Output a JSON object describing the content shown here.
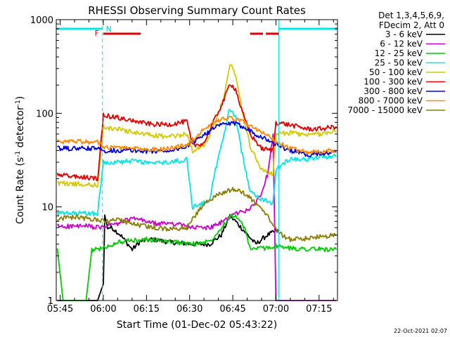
{
  "chart_data": {
    "type": "line",
    "title": "RHESSI Observing Summary Count Rates",
    "xlabel": "Start Time (01-Dec-02 05:43:22)",
    "ylabel_main": "Count Rate (s",
    "ylabel_sup1": "-1",
    "ylabel_mid": " detector",
    "ylabel_sup2": "-1",
    "ylabel_end": ")",
    "y_scale": "log",
    "ylim": [
      1,
      1000
    ],
    "xlim_minutes": [
      -1.37,
      96.4
    ],
    "x_ticks": [
      {
        "label": "05:45",
        "minute": 0
      },
      {
        "label": "06:00",
        "minute": 15
      },
      {
        "label": "06:15",
        "minute": 30
      },
      {
        "label": "06:30",
        "minute": 45
      },
      {
        "label": "06:45",
        "minute": 60
      },
      {
        "label": "07:00",
        "minute": 75
      },
      {
        "label": "07:15",
        "minute": 90
      }
    ],
    "y_ticks": [
      {
        "label": "1",
        "value": 1
      },
      {
        "label": "10",
        "value": 10
      },
      {
        "label": "100",
        "value": 100
      },
      {
        "label": "1000",
        "value": 1000
      }
    ],
    "legend_header": [
      "Det 1,3,4,5,6,9,",
      "FDecim 2, Att 0"
    ],
    "legend_position": "top-right, outside plot",
    "series": [
      {
        "name": "3 - 6 keV",
        "color": "#000000",
        "points": [
          [
            -1.0,
            1
          ],
          [
            13.0,
            1
          ],
          [
            15.0,
            1.5
          ],
          [
            15.5,
            8
          ],
          [
            16.5,
            6
          ],
          [
            18,
            6
          ],
          [
            21,
            5
          ],
          [
            25,
            3.5
          ],
          [
            28,
            4.3
          ],
          [
            32,
            4.5
          ],
          [
            38,
            4.2
          ],
          [
            46,
            4
          ],
          [
            52,
            4
          ],
          [
            56,
            5
          ],
          [
            59,
            8
          ],
          [
            61,
            7
          ],
          [
            64,
            5.5
          ],
          [
            68,
            4
          ],
          [
            72,
            5
          ],
          [
            75,
            5.5
          ],
          [
            76,
            5.5
          ]
        ]
      },
      {
        "name": "6 - 12 keV",
        "color": "#cc00cc",
        "points": [
          [
            -1.0,
            6.2
          ],
          [
            10,
            6.2
          ],
          [
            13,
            6
          ],
          [
            15,
            6
          ],
          [
            17,
            6.5
          ],
          [
            20,
            6.5
          ],
          [
            23,
            7.2
          ],
          [
            26,
            7.5
          ],
          [
            30,
            7
          ],
          [
            34,
            6.5
          ],
          [
            38,
            6.8
          ],
          [
            46,
            6
          ],
          [
            52,
            6
          ],
          [
            55,
            6.5
          ],
          [
            58,
            7.5
          ],
          [
            61,
            8.5
          ],
          [
            64,
            9
          ],
          [
            67,
            10
          ],
          [
            70,
            14
          ],
          [
            72,
            22
          ],
          [
            74,
            60
          ],
          [
            75,
            1
          ],
          [
            96,
            1
          ]
        ]
      },
      {
        "name": "12 - 25 keV",
        "color": "#00cc00",
        "points": [
          [
            -1.0,
            3.6
          ],
          [
            1,
            1
          ],
          [
            9,
            1
          ],
          [
            11,
            3.5
          ],
          [
            15,
            3.6
          ],
          [
            20,
            4.2
          ],
          [
            30,
            4.5
          ],
          [
            40,
            4.2
          ],
          [
            46,
            4
          ],
          [
            52,
            4.3
          ],
          [
            56,
            6
          ],
          [
            59,
            8
          ],
          [
            61,
            8
          ],
          [
            64,
            6
          ],
          [
            66,
            3.6
          ],
          [
            70,
            3.6
          ],
          [
            75,
            3.8
          ],
          [
            80,
            3.6
          ],
          [
            96,
            3.5
          ]
        ]
      },
      {
        "name": "25 - 50 keV",
        "color": "#00e5e5",
        "points": [
          [
            -1.0,
            8.5
          ],
          [
            13,
            8.5
          ],
          [
            15,
            30
          ],
          [
            20,
            30
          ],
          [
            26,
            31
          ],
          [
            32,
            29
          ],
          [
            38,
            30
          ],
          [
            44,
            32
          ],
          [
            46,
            10
          ],
          [
            50,
            11
          ],
          [
            52,
            12
          ],
          [
            54,
            25
          ],
          [
            57,
            60
          ],
          [
            59,
            115
          ],
          [
            61,
            90
          ],
          [
            63,
            40
          ],
          [
            66,
            15
          ],
          [
            70,
            12
          ],
          [
            74,
            11
          ],
          [
            75,
            25
          ],
          [
            80,
            33
          ],
          [
            86,
            32
          ],
          [
            90,
            34
          ],
          [
            96,
            35
          ]
        ]
      },
      {
        "name": "50 - 100 keV",
        "color": "#d4c800",
        "points": [
          [
            -1.0,
            18
          ],
          [
            13,
            17
          ],
          [
            15,
            70
          ],
          [
            20,
            68
          ],
          [
            26,
            62
          ],
          [
            32,
            58
          ],
          [
            38,
            56
          ],
          [
            44,
            60
          ],
          [
            46,
            40
          ],
          [
            50,
            45
          ],
          [
            54,
            80
          ],
          [
            57,
            160
          ],
          [
            59,
            340
          ],
          [
            61,
            260
          ],
          [
            63,
            120
          ],
          [
            66,
            45
          ],
          [
            70,
            25
          ],
          [
            74,
            22
          ],
          [
            75,
            60
          ],
          [
            80,
            62
          ],
          [
            86,
            58
          ],
          [
            90,
            60
          ],
          [
            96,
            65
          ]
        ]
      },
      {
        "name": "100 - 300 keV",
        "color": "#e00000",
        "points": [
          [
            -1.0,
            22
          ],
          [
            13,
            20
          ],
          [
            15,
            95
          ],
          [
            20,
            90
          ],
          [
            26,
            82
          ],
          [
            32,
            76
          ],
          [
            38,
            76
          ],
          [
            44,
            82
          ],
          [
            46,
            45
          ],
          [
            50,
            48
          ],
          [
            54,
            90
          ],
          [
            57,
            140
          ],
          [
            59,
            210
          ],
          [
            61,
            180
          ],
          [
            63,
            110
          ],
          [
            66,
            60
          ],
          [
            70,
            42
          ],
          [
            74,
            40
          ],
          [
            75,
            80
          ],
          [
            80,
            75
          ],
          [
            86,
            68
          ],
          [
            90,
            68
          ],
          [
            96,
            72
          ]
        ]
      },
      {
        "name": "300 - 800 keV",
        "color": "#0000dd",
        "points": [
          [
            -1.0,
            42
          ],
          [
            13,
            42
          ],
          [
            15,
            40
          ],
          [
            20,
            40
          ],
          [
            26,
            40
          ],
          [
            32,
            39
          ],
          [
            38,
            40
          ],
          [
            44,
            44
          ],
          [
            50,
            60
          ],
          [
            56,
            76
          ],
          [
            60,
            78
          ],
          [
            64,
            72
          ],
          [
            68,
            60
          ],
          [
            72,
            52
          ],
          [
            76,
            45
          ],
          [
            80,
            40
          ],
          [
            86,
            36
          ],
          [
            90,
            37
          ],
          [
            96,
            39
          ]
        ]
      },
      {
        "name": "800 - 7000 keV",
        "color": "#ff8800",
        "points": [
          [
            -1.0,
            50
          ],
          [
            6,
            50
          ],
          [
            13,
            49
          ],
          [
            15,
            44
          ],
          [
            20,
            43
          ],
          [
            26,
            42
          ],
          [
            32,
            41
          ],
          [
            38,
            42
          ],
          [
            44,
            46
          ],
          [
            50,
            68
          ],
          [
            56,
            86
          ],
          [
            60,
            88
          ],
          [
            64,
            80
          ],
          [
            68,
            68
          ],
          [
            72,
            58
          ],
          [
            76,
            48
          ],
          [
            80,
            42
          ],
          [
            86,
            38
          ],
          [
            90,
            39
          ],
          [
            96,
            40
          ]
        ]
      },
      {
        "name": "7000 - 15000 keV",
        "color": "#8b7d00",
        "points": [
          [
            -1.0,
            7.5
          ],
          [
            6,
            7.8
          ],
          [
            13,
            7.2
          ],
          [
            15,
            7
          ],
          [
            20,
            7.2
          ],
          [
            26,
            6.5
          ],
          [
            32,
            6
          ],
          [
            38,
            5.8
          ],
          [
            44,
            6
          ],
          [
            50,
            11
          ],
          [
            56,
            14
          ],
          [
            60,
            15.5
          ],
          [
            64,
            14
          ],
          [
            68,
            11
          ],
          [
            72,
            8
          ],
          [
            76,
            5.2
          ],
          [
            80,
            4.5
          ],
          [
            86,
            4.6
          ],
          [
            90,
            4.8
          ],
          [
            96,
            5
          ]
        ]
      }
    ],
    "grid": false
  },
  "annotations": {
    "bar_label_F": "F",
    "bar_label_N": "N",
    "bars": [
      {
        "name": "night-bar",
        "color": "#00e5e5",
        "from": -1.37,
        "to": 14.7
      },
      {
        "name": "night-bar",
        "color": "#00e5e5",
        "from": 76.0,
        "to": 96.4
      },
      {
        "name": "flag-bar",
        "color": "#e00000",
        "from": 15.0,
        "to": 28.0
      },
      {
        "name": "flag-bar",
        "color": "#e00000",
        "from": 66.0,
        "to": 70.5
      },
      {
        "name": "flag-bar",
        "color": "#e00000",
        "from": 71.5,
        "to": 76.0
      }
    ],
    "vlines": [
      {
        "minute": 14.7,
        "color": "#00e5e5",
        "style": "dashed"
      },
      {
        "minute": 76.0,
        "color": "#00e5e5",
        "style": "solid"
      },
      {
        "minute": 96.4,
        "color": "#00e5e5",
        "style": "dashed"
      }
    ]
  },
  "footer": {
    "timestamp": "22-Oct-2021 02:07"
  }
}
